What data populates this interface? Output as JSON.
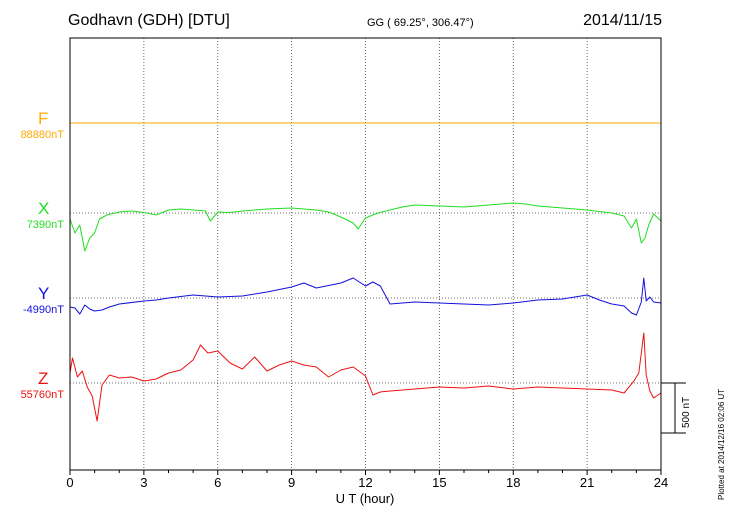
{
  "header": {
    "station": "Godhavn (GDH)  [DTU]",
    "coordinates": "GG ( 69.25°, 306.47°)",
    "date": "2014/11/15"
  },
  "side": {
    "scale_label": "500 nT",
    "plotted": "Plotted at 2014/12/16 02:06 UT"
  },
  "colors": {
    "F": "#ffaa00",
    "X": "#22dd22",
    "Y": "#1111dd",
    "Z": "#ee1111"
  },
  "chart_data": {
    "type": "line",
    "title": "",
    "xlabel": "U T (hour)",
    "ylabel": "",
    "xlim": [
      0,
      24
    ],
    "xticks": [
      0,
      3,
      6,
      9,
      12,
      15,
      18,
      21,
      24
    ],
    "grid": true,
    "scale_bar_nT": 500,
    "series": [
      {
        "name": "F",
        "baseline": "88880nT",
        "offset_nT": 0,
        "x": [
          0,
          24
        ],
        "y": [
          0,
          0
        ]
      },
      {
        "name": "X",
        "baseline": "7390nT",
        "offset_nT": -900,
        "x": [
          0,
          0.2,
          0.4,
          0.6,
          0.8,
          1.0,
          1.2,
          1.5,
          2.0,
          2.5,
          3.0,
          3.5,
          4.0,
          4.5,
          5.0,
          5.5,
          5.7,
          6.0,
          6.5,
          7.0,
          8.0,
          9.0,
          10.0,
          10.5,
          11.0,
          11.5,
          11.7,
          12.0,
          12.5,
          13.0,
          13.5,
          14.0,
          15.0,
          16.0,
          17.0,
          18.0,
          18.5,
          19.0,
          20.0,
          21.0,
          22.0,
          22.5,
          22.8,
          23.0,
          23.2,
          23.35,
          23.5,
          23.7,
          24.0
        ],
        "y": [
          -60,
          -200,
          -120,
          -380,
          -250,
          -200,
          -60,
          -20,
          10,
          20,
          5,
          -20,
          30,
          40,
          30,
          20,
          -80,
          10,
          5,
          20,
          40,
          50,
          30,
          10,
          -40,
          -100,
          -160,
          -50,
          0,
          30,
          60,
          80,
          70,
          60,
          80,
          100,
          90,
          70,
          50,
          30,
          0,
          -30,
          -150,
          -60,
          -300,
          -250,
          -120,
          -10,
          -80
        ]
      },
      {
        "name": "Y",
        "baseline": "-4990nT",
        "offset_nT": -1750,
        "x": [
          0,
          0.2,
          0.4,
          0.6,
          0.8,
          1.0,
          1.3,
          1.6,
          2.0,
          3.0,
          3.5,
          4.0,
          5.0,
          6.0,
          7.0,
          8.0,
          9.0,
          9.5,
          10.0,
          11.0,
          11.5,
          12.0,
          12.3,
          12.6,
          13.0,
          13.5,
          14.0,
          15.0,
          16.0,
          17.0,
          18.0,
          19.0,
          20.0,
          21.0,
          21.5,
          22.0,
          22.5,
          22.8,
          23.0,
          23.2,
          23.3,
          23.4,
          23.55,
          23.7,
          24.0
        ],
        "y": [
          -90,
          -100,
          -160,
          -70,
          -110,
          -130,
          -120,
          -90,
          -60,
          -30,
          -20,
          0,
          30,
          10,
          20,
          60,
          110,
          150,
          100,
          150,
          200,
          120,
          160,
          120,
          -60,
          -50,
          -40,
          -50,
          -60,
          -70,
          -50,
          -20,
          -10,
          30,
          -20,
          -60,
          -80,
          -150,
          -170,
          -40,
          200,
          -30,
          10,
          -40,
          -50
        ]
      },
      {
        "name": "Z",
        "baseline": "55760nT",
        "offset_nT": -2600,
        "x": [
          0,
          0.1,
          0.3,
          0.5,
          0.7,
          0.9,
          1.1,
          1.3,
          1.6,
          2.0,
          2.5,
          3.0,
          3.5,
          4.0,
          4.5,
          5.0,
          5.3,
          5.6,
          6.0,
          6.5,
          7.0,
          7.5,
          8.0,
          8.5,
          9.0,
          9.5,
          10.0,
          10.5,
          11.0,
          11.5,
          12.0,
          12.3,
          12.6,
          13.0,
          14.0,
          15.0,
          16.0,
          17.0,
          18.0,
          19.0,
          20.0,
          21.0,
          22.0,
          22.5,
          22.9,
          23.1,
          23.3,
          23.4,
          23.55,
          23.7,
          24.0
        ],
        "y": [
          100,
          250,
          60,
          120,
          -40,
          -130,
          -380,
          -20,
          80,
          50,
          60,
          20,
          40,
          100,
          130,
          230,
          380,
          300,
          320,
          200,
          140,
          260,
          120,
          180,
          220,
          180,
          160,
          60,
          130,
          160,
          70,
          -120,
          -90,
          -80,
          -60,
          -40,
          -50,
          -30,
          -60,
          -40,
          -50,
          -60,
          -70,
          -100,
          20,
          100,
          500,
          80,
          -80,
          -150,
          -100
        ]
      }
    ]
  }
}
